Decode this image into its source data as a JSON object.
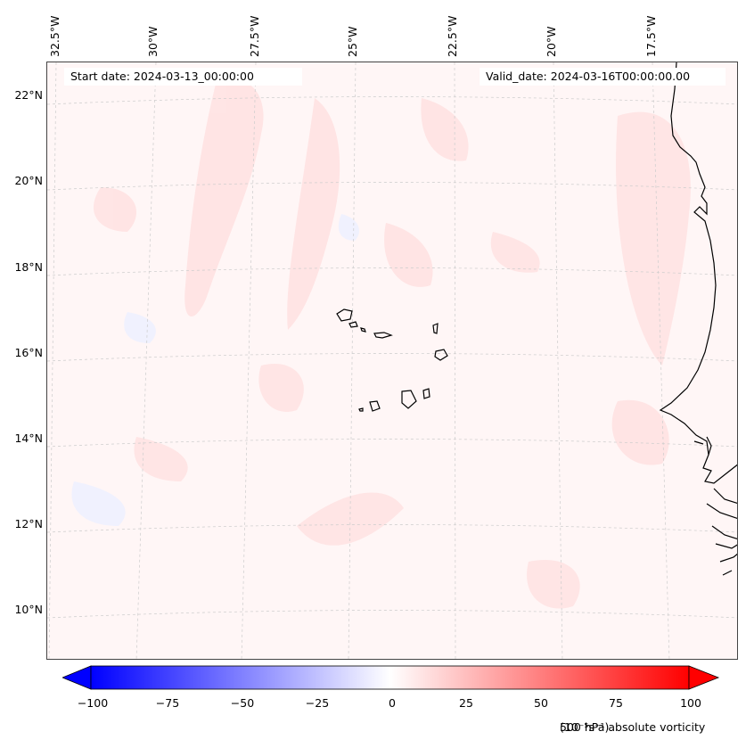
{
  "map": {
    "start_date": "Start date: 2024-03-13_00:00:00",
    "valid_date": "Valid_date: 2024-03-16T00:00:00.00",
    "lon_labels": [
      "32.5°W",
      "30°W",
      "27.5°W",
      "25°W",
      "22.5°W",
      "20°W",
      "17.5°W"
    ],
    "lat_labels": [
      "22°N",
      "20°N",
      "18°N",
      "16°N",
      "14°N",
      "12°N",
      "10°N"
    ],
    "field": "500 hPa absolute vorticity",
    "colormap": "bwr"
  },
  "colorbar": {
    "ticks": [
      "−100",
      "−75",
      "−50",
      "−25",
      "0",
      "25",
      "50",
      "75",
      "100"
    ],
    "label": "500 hPa absolute vorticity",
    "units": "(10⁻⁵s⁻¹)",
    "min": -100,
    "max": 100,
    "colors": {
      "negative": "#0000ff",
      "zero": "#ffffff",
      "positive": "#ff0000"
    }
  }
}
